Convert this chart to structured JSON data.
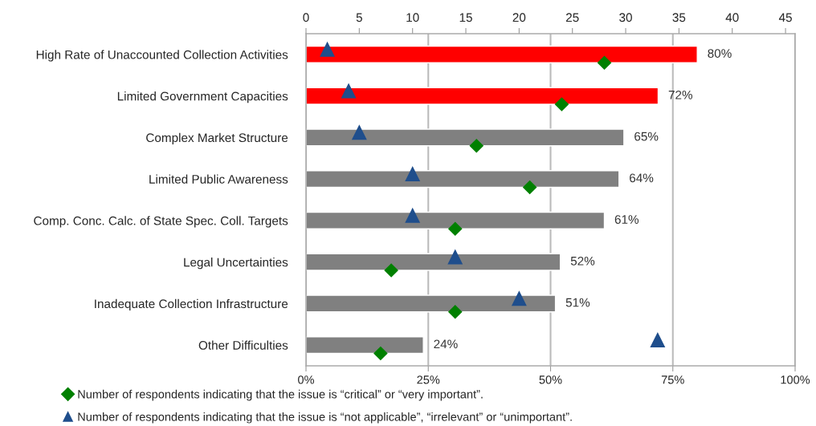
{
  "chart_data": {
    "type": "bar",
    "orientation": "horizontal",
    "categories": [
      "High Rate of Unaccounted Collection Activities",
      "Limited Government Capacities",
      "Complex Market Structure",
      "Limited Public Awareness",
      "Comp. Conc. Calc. of State Spec. Coll. Targets",
      "Legal Uncertainties",
      "Inadequate Collection Infrastructure",
      "Other Difficulties"
    ],
    "series": [
      {
        "values": [
          80,
          72,
          65,
          64,
          61,
          52,
          51,
          24
        ],
        "colors": [
          "#ff0000",
          "#ff0000",
          "#808080",
          "#808080",
          "#808080",
          "#808080",
          "#808080",
          "#808080"
        ],
        "value_labels": [
          "80%",
          "72%",
          "65%",
          "64%",
          "61%",
          "52%",
          "51%",
          "24%"
        ]
      },
      {
        "type": "scatter",
        "axis": "x2",
        "name": "Number of respondents indicating that the issue is “critical” or “very important”.",
        "color": "#008000",
        "marker": "diamond",
        "values": [
          28,
          24,
          16,
          21,
          14,
          8,
          14,
          7
        ]
      },
      {
        "type": "scatter",
        "axis": "x2",
        "name": "Number of respondents indicating that the issue is “not applicable”, “irrelevant” or “unimportant”.",
        "color": "#1f4e8c",
        "marker": "triangle",
        "values": [
          2,
          4,
          5,
          10,
          10,
          14,
          20,
          33
        ]
      }
    ],
    "xlim": [
      0,
      100
    ],
    "xticks": [
      {
        "value": 0,
        "label": "0%"
      },
      {
        "value": 25,
        "label": "25%"
      },
      {
        "value": 50,
        "label": "50%"
      },
      {
        "value": 75,
        "label": "75%"
      },
      {
        "value": 100,
        "label": "100%"
      }
    ],
    "x2lim": [
      0,
      45.9
    ],
    "x2ticks": [
      0,
      5,
      10,
      15,
      20,
      25,
      30,
      35,
      40,
      45
    ],
    "grid": "x",
    "legend": "bottom"
  }
}
